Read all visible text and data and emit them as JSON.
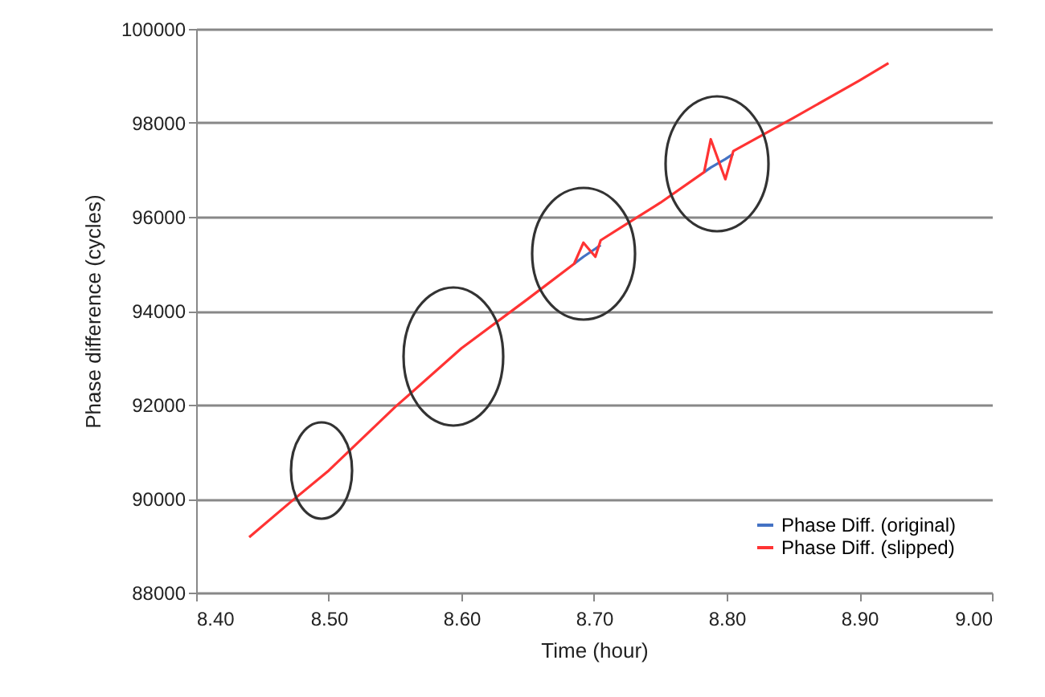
{
  "chart_data": {
    "type": "line",
    "xlabel": "Time (hour)",
    "ylabel": "Phase difference (cycles)",
    "xlim": [
      8.4,
      9.0
    ],
    "xticks": [
      {
        "value": 8.4,
        "label": "8.40"
      },
      {
        "value": 8.5,
        "label": "8.50"
      },
      {
        "value": 8.6,
        "label": "8.60"
      },
      {
        "value": 8.7,
        "label": "8.70"
      },
      {
        "value": 8.8,
        "label": "8.80"
      },
      {
        "value": 8.9,
        "label": "8.90"
      },
      {
        "value": 9.0,
        "label": "9.00"
      }
    ],
    "ylim": [
      88000,
      100000
    ],
    "yticks": [
      88000,
      90000,
      92000,
      94000,
      96000,
      98000,
      100000
    ],
    "grid": "y",
    "legend": "bottom right",
    "marker": "none",
    "line_style": "solid",
    "series": [
      {
        "name": "Phase Diff. (original)",
        "color": "#4472c4",
        "x": [
          8.685,
          8.692,
          8.701,
          8.705,
          8.75,
          8.783,
          8.788,
          8.799,
          8.805
        ],
        "values": [
          95000,
          95150,
          95320,
          95400,
          null,
          96950,
          97050,
          97230,
          97340
        ]
      },
      {
        "name": "Phase Diff. (slipped)",
        "color": "#ff3333",
        "x": [
          8.44,
          8.47,
          8.5,
          8.55,
          8.6,
          8.65,
          8.685,
          8.692,
          8.701,
          8.705,
          8.75,
          8.783,
          8.788,
          8.799,
          8.805,
          8.85,
          8.9,
          8.922
        ],
        "values": [
          89180,
          89900,
          90600,
          91950,
          93200,
          94250,
          95000,
          95450,
          95150,
          95500,
          96300,
          96950,
          97650,
          96800,
          97400,
          98100,
          98900,
          99270
        ]
      }
    ]
  }
}
